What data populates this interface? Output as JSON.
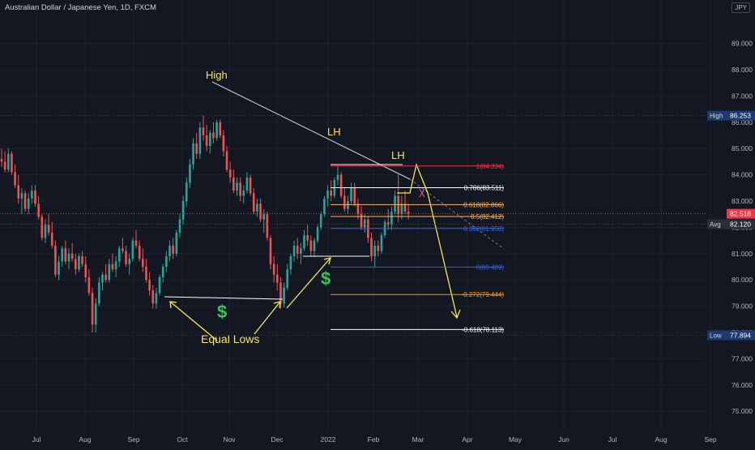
{
  "header": {
    "symbol_title": "Australian Dollar / Japanese Yen, 1D, FXCM",
    "currency_badge": "JPY"
  },
  "colors": {
    "background": "#131722",
    "grid": "#1e222d",
    "up": "#26a69a",
    "down": "#ef5350",
    "axis_text": "#b2b5be",
    "annotation_yellow": "#f5e94a",
    "dollar_green": "#34c759",
    "fib_red": "#f23645",
    "fib_white": "#ffffff",
    "fib_orange": "#ff9800",
    "fib_blue": "#2962ff"
  },
  "chart_data": {
    "type": "candlestick",
    "title": "Australian Dollar / Japanese Yen, 1D, FXCM",
    "x_ticks": [
      "Jul",
      "Aug",
      "Sep",
      "Oct",
      "Nov",
      "Dec",
      "2022",
      "Feb",
      "Mar",
      "Apr",
      "May",
      "Jun",
      "Jul",
      "Aug",
      "Sep"
    ],
    "y_ticks": [
      75.0,
      76.0,
      77.0,
      78.0,
      79.0,
      80.0,
      81.0,
      82.0,
      83.0,
      84.0,
      85.0,
      86.0,
      87.0,
      88.0,
      89.0
    ],
    "ylim": [
      74.5,
      89.0
    ],
    "grid": true,
    "price_labels": [
      {
        "label": "High",
        "value": 86.253,
        "text": "86.253"
      },
      {
        "label": "",
        "value": 82.518,
        "text": "82.518"
      },
      {
        "label": "Avg",
        "value": 82.12,
        "text": "82.120"
      },
      {
        "label": "Low",
        "value": 77.894,
        "text": "77.894"
      }
    ],
    "fib_levels": [
      {
        "text": "1(84.334)",
        "value": 84.334,
        "color": "#f23645"
      },
      {
        "text": "0.786(83.511)",
        "value": 83.511,
        "color": "#ffffff"
      },
      {
        "text": "0.618(82.866)",
        "value": 82.866,
        "color": "#ffb74d"
      },
      {
        "text": "0.5(82.412)",
        "value": 82.412,
        "color": "#ffb74d"
      },
      {
        "text": "0.382(81.958)",
        "value": 81.958,
        "color": "#2962ff"
      },
      {
        "text": "0(80.489)",
        "value": 80.489,
        "color": "#2962ff"
      },
      {
        "text": "-0.272(79.444)",
        "value": 79.444,
        "color": "#ff9800"
      },
      {
        "text": "-0.618(78.113)",
        "value": 78.113,
        "color": "#ffffff"
      }
    ],
    "annotations": [
      "High",
      "LH",
      "LH",
      "Equal Lows",
      "$",
      "$"
    ],
    "candles": [
      [
        84.6,
        85.0,
        84.3,
        84.5
      ],
      [
        84.5,
        84.9,
        84.1,
        84.2
      ],
      [
        84.2,
        85.0,
        84.1,
        84.8
      ],
      [
        84.8,
        84.9,
        84.0,
        84.1
      ],
      [
        84.1,
        84.4,
        83.5,
        83.6
      ],
      [
        83.6,
        84.0,
        82.9,
        83.1
      ],
      [
        83.1,
        83.5,
        82.5,
        83.3
      ],
      [
        83.3,
        83.4,
        82.6,
        82.7
      ],
      [
        82.7,
        83.3,
        82.5,
        83.1
      ],
      [
        83.1,
        83.6,
        82.9,
        83.4
      ],
      [
        83.4,
        83.6,
        82.8,
        82.9
      ],
      [
        82.9,
        83.2,
        82.3,
        82.4
      ],
      [
        82.4,
        82.5,
        81.5,
        81.6
      ],
      [
        81.6,
        82.3,
        81.4,
        82.1
      ],
      [
        82.1,
        82.5,
        81.7,
        81.8
      ],
      [
        81.8,
        82.2,
        81.2,
        81.3
      ],
      [
        81.3,
        81.5,
        80.1,
        80.2
      ],
      [
        80.2,
        80.9,
        80.0,
        80.7
      ],
      [
        80.7,
        81.3,
        80.5,
        81.2
      ],
      [
        81.2,
        81.5,
        80.6,
        80.7
      ],
      [
        80.7,
        81.2,
        80.4,
        81.0
      ],
      [
        81.0,
        81.4,
        80.7,
        80.8
      ],
      [
        80.8,
        81.0,
        80.2,
        80.4
      ],
      [
        80.4,
        81.0,
        80.3,
        80.9
      ],
      [
        80.9,
        81.1,
        80.5,
        80.6
      ],
      [
        80.6,
        80.9,
        79.9,
        80.1
      ],
      [
        80.1,
        80.4,
        79.4,
        79.5
      ],
      [
        79.5,
        79.7,
        78.0,
        78.3
      ],
      [
        78.3,
        79.3,
        78.0,
        79.1
      ],
      [
        79.1,
        80.1,
        79.0,
        79.9
      ],
      [
        79.9,
        80.3,
        79.6,
        80.2
      ],
      [
        80.2,
        80.6,
        79.9,
        80.0
      ],
      [
        80.0,
        80.8,
        79.9,
        80.6
      ],
      [
        80.6,
        81.0,
        80.3,
        80.4
      ],
      [
        80.4,
        80.9,
        80.1,
        80.7
      ],
      [
        80.7,
        81.3,
        80.5,
        81.2
      ],
      [
        81.2,
        81.6,
        81.0,
        81.1
      ],
      [
        81.1,
        81.3,
        80.5,
        80.6
      ],
      [
        80.6,
        81.0,
        80.2,
        80.8
      ],
      [
        80.8,
        81.6,
        80.7,
        81.5
      ],
      [
        81.5,
        81.9,
        81.2,
        81.3
      ],
      [
        81.3,
        81.5,
        80.7,
        80.8
      ],
      [
        80.8,
        81.2,
        80.3,
        80.5
      ],
      [
        80.5,
        80.8,
        79.9,
        80.0
      ],
      [
        80.0,
        80.3,
        79.4,
        79.6
      ],
      [
        79.6,
        79.8,
        78.9,
        79.1
      ],
      [
        79.1,
        79.7,
        78.9,
        79.5
      ],
      [
        79.5,
        80.2,
        79.4,
        80.1
      ],
      [
        80.1,
        80.6,
        79.9,
        80.5
      ],
      [
        80.5,
        81.1,
        80.3,
        80.9
      ],
      [
        80.9,
        81.5,
        80.7,
        81.3
      ],
      [
        81.3,
        81.6,
        80.8,
        81.0
      ],
      [
        81.0,
        81.9,
        80.9,
        81.8
      ],
      [
        81.8,
        82.5,
        81.6,
        82.3
      ],
      [
        82.3,
        83.2,
        82.1,
        83.0
      ],
      [
        83.0,
        83.9,
        82.8,
        83.7
      ],
      [
        83.7,
        84.6,
        83.5,
        84.4
      ],
      [
        84.4,
        85.4,
        84.2,
        85.2
      ],
      [
        85.2,
        85.6,
        84.6,
        84.8
      ],
      [
        84.8,
        86.0,
        84.6,
        85.8
      ],
      [
        85.8,
        86.25,
        85.3,
        85.5
      ],
      [
        85.5,
        85.9,
        84.9,
        85.1
      ],
      [
        85.1,
        85.7,
        84.8,
        85.6
      ],
      [
        85.6,
        86.0,
        85.2,
        85.4
      ],
      [
        85.4,
        86.1,
        85.3,
        86.0
      ],
      [
        86.0,
        86.1,
        85.4,
        85.5
      ],
      [
        85.5,
        85.7,
        84.7,
        84.9
      ],
      [
        84.9,
        85.1,
        84.1,
        84.2
      ],
      [
        84.2,
        84.5,
        83.7,
        83.9
      ],
      [
        83.9,
        84.2,
        83.3,
        83.4
      ],
      [
        83.4,
        83.9,
        83.2,
        83.7
      ],
      [
        83.7,
        83.9,
        83.0,
        83.2
      ],
      [
        83.2,
        83.6,
        82.9,
        83.4
      ],
      [
        83.4,
        84.1,
        83.3,
        83.9
      ],
      [
        83.9,
        84.0,
        83.2,
        83.3
      ],
      [
        83.3,
        83.5,
        82.5,
        82.6
      ],
      [
        82.6,
        83.1,
        82.4,
        82.9
      ],
      [
        82.9,
        83.1,
        82.2,
        82.3
      ],
      [
        82.3,
        82.7,
        81.8,
        82.5
      ],
      [
        82.5,
        82.6,
        81.5,
        81.6
      ],
      [
        81.6,
        81.7,
        80.4,
        80.6
      ],
      [
        80.6,
        80.9,
        79.9,
        80.2
      ],
      [
        80.2,
        80.6,
        79.6,
        79.9
      ],
      [
        79.9,
        80.1,
        78.9,
        79.1
      ],
      [
        79.1,
        79.9,
        78.95,
        79.7
      ],
      [
        79.7,
        80.6,
        79.6,
        80.4
      ],
      [
        80.4,
        81.0,
        80.2,
        80.9
      ],
      [
        80.9,
        81.5,
        80.7,
        81.3
      ],
      [
        81.3,
        81.6,
        80.8,
        81.0
      ],
      [
        81.0,
        81.4,
        80.6,
        81.2
      ],
      [
        81.2,
        81.9,
        81.1,
        81.7
      ],
      [
        81.7,
        82.1,
        81.3,
        81.5
      ],
      [
        81.5,
        81.7,
        80.9,
        81.1
      ],
      [
        81.1,
        81.6,
        80.9,
        81.5
      ],
      [
        81.5,
        82.1,
        81.4,
        82.0
      ],
      [
        82.0,
        82.6,
        81.9,
        82.5
      ],
      [
        82.5,
        83.2,
        82.4,
        83.1
      ],
      [
        83.1,
        83.6,
        82.8,
        83.4
      ],
      [
        83.4,
        83.8,
        83.0,
        83.2
      ],
      [
        83.2,
        83.9,
        83.1,
        83.8
      ],
      [
        83.8,
        84.33,
        83.6,
        84.0
      ],
      [
        84.0,
        84.1,
        83.1,
        83.2
      ],
      [
        83.2,
        83.5,
        82.6,
        82.7
      ],
      [
        82.7,
        83.2,
        82.5,
        83.0
      ],
      [
        83.0,
        83.7,
        82.9,
        83.5
      ],
      [
        83.5,
        83.7,
        82.8,
        82.9
      ],
      [
        82.9,
        83.1,
        82.3,
        82.5
      ],
      [
        82.5,
        82.8,
        81.9,
        82.0
      ],
      [
        82.0,
        82.5,
        81.8,
        82.3
      ],
      [
        82.3,
        82.4,
        81.4,
        81.6
      ],
      [
        81.6,
        81.8,
        80.7,
        80.9
      ],
      [
        80.9,
        81.5,
        80.5,
        81.3
      ],
      [
        81.3,
        81.5,
        80.9,
        81.1
      ],
      [
        81.1,
        81.8,
        81.0,
        81.7
      ],
      [
        81.7,
        82.3,
        81.6,
        82.2
      ],
      [
        82.2,
        82.7,
        81.9,
        82.1
      ],
      [
        82.1,
        82.8,
        81.9,
        82.6
      ],
      [
        82.6,
        83.4,
        82.5,
        83.2
      ],
      [
        83.2,
        84.0,
        82.2,
        82.5
      ],
      [
        82.5,
        83.2,
        82.3,
        82.9
      ],
      [
        82.9,
        83.4,
        82.5,
        82.6
      ],
      [
        82.6,
        82.9,
        82.3,
        82.5
      ]
    ]
  },
  "annotations": {
    "high_label": "High",
    "lh_label_1": "LH",
    "lh_label_2": "LH",
    "equal_lows_label": "Equal Lows",
    "dollar_1": "$",
    "dollar_2": "$"
  }
}
